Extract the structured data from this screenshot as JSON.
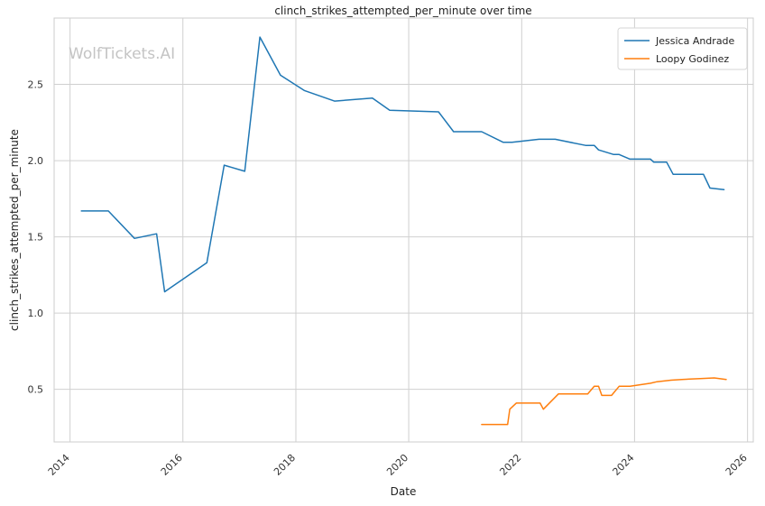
{
  "chart_data": {
    "type": "line",
    "title": "clinch_strikes_attempted_per_minute over time",
    "xlabel": "Date",
    "ylabel": "clinch_strikes_attempted_per_minute",
    "watermark": "WolfTickets.AI",
    "x_ticks": [
      "2014",
      "2016",
      "2018",
      "2020",
      "2022",
      "2024",
      "2026"
    ],
    "y_ticks": [
      "0.5",
      "1.0",
      "1.5",
      "2.0",
      "2.5"
    ],
    "xlim": [
      "2013-09-20",
      "2026-02-07"
    ],
    "ylim": [
      0.155,
      2.935
    ],
    "grid": true,
    "legend_position": "top-right",
    "series": [
      {
        "name": "Jessica Andrade",
        "color": "#1f77b4",
        "points": [
          [
            "2014-03-15",
            1.67
          ],
          [
            "2014-09-06",
            1.67
          ],
          [
            "2015-02-22",
            1.49
          ],
          [
            "2015-07-15",
            1.52
          ],
          [
            "2015-09-05",
            1.14
          ],
          [
            "2016-06-04",
            1.33
          ],
          [
            "2016-09-24",
            1.97
          ],
          [
            "2017-02-04",
            1.93
          ],
          [
            "2017-05-13",
            2.81
          ],
          [
            "2017-09-23",
            2.56
          ],
          [
            "2018-02-24",
            2.46
          ],
          [
            "2018-09-08",
            2.39
          ],
          [
            "2019-05-11",
            2.41
          ],
          [
            "2019-08-31",
            2.33
          ],
          [
            "2020-07-12",
            2.32
          ],
          [
            "2020-10-17",
            2.19
          ],
          [
            "2021-04-17",
            2.19
          ],
          [
            "2021-09-04",
            2.12
          ],
          [
            "2021-10-30",
            2.12
          ],
          [
            "2022-04-23",
            2.14
          ],
          [
            "2022-08-06",
            2.14
          ],
          [
            "2023-02-18",
            2.1
          ],
          [
            "2023-04-15",
            2.1
          ],
          [
            "2023-05-13",
            2.07
          ],
          [
            "2023-08-19",
            2.04
          ],
          [
            "2023-09-23",
            2.04
          ],
          [
            "2023-12-02",
            2.01
          ],
          [
            "2024-04-13",
            2.01
          ],
          [
            "2024-05-04",
            1.99
          ],
          [
            "2024-07-27",
            1.99
          ],
          [
            "2024-09-07",
            1.91
          ],
          [
            "2025-03-22",
            1.91
          ],
          [
            "2025-05-03",
            1.82
          ],
          [
            "2025-08-02",
            1.81
          ]
        ]
      },
      {
        "name": "Loopy Godinez",
        "color": "#ff7f0e",
        "points": [
          [
            "2021-04-17",
            0.27
          ],
          [
            "2021-10-02",
            0.27
          ],
          [
            "2021-10-16",
            0.37
          ],
          [
            "2021-11-27",
            0.41
          ],
          [
            "2022-04-30",
            0.41
          ],
          [
            "2022-05-21",
            0.37
          ],
          [
            "2022-08-27",
            0.47
          ],
          [
            "2023-03-04",
            0.47
          ],
          [
            "2023-04-15",
            0.52
          ],
          [
            "2023-05-13",
            0.52
          ],
          [
            "2023-06-03",
            0.46
          ],
          [
            "2023-08-05",
            0.46
          ],
          [
            "2023-09-23",
            0.52
          ],
          [
            "2023-12-02",
            0.52
          ],
          [
            "2024-04-13",
            0.54
          ],
          [
            "2024-05-25",
            0.55
          ],
          [
            "2024-08-24",
            0.56
          ],
          [
            "2024-11-02",
            0.565
          ],
          [
            "2025-03-01",
            0.57
          ],
          [
            "2025-05-31",
            0.575
          ],
          [
            "2025-08-16",
            0.565
          ]
        ]
      }
    ]
  }
}
